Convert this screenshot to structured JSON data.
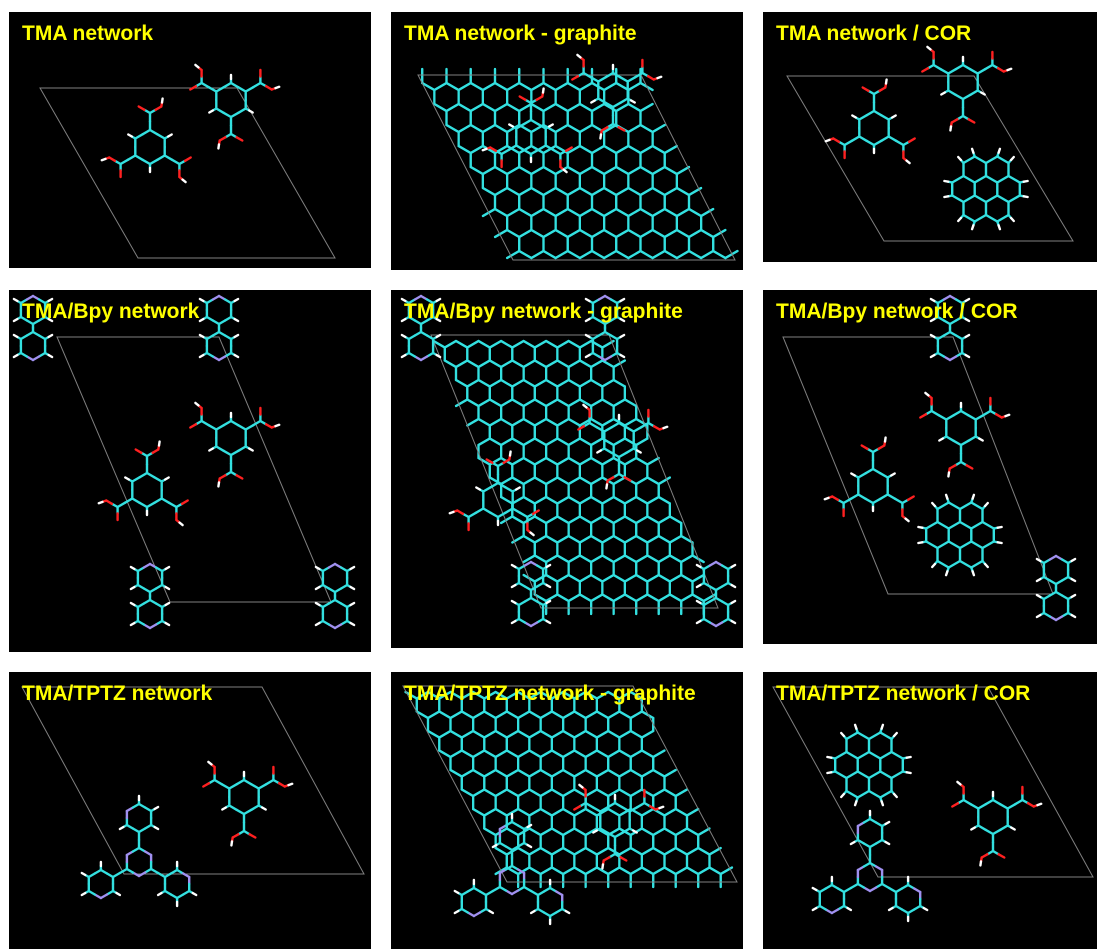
{
  "figure": {
    "panels": [
      {
        "label": "TMA network"
      },
      {
        "label": "TMA network - graphite"
      },
      {
        "label": "TMA network / COR"
      },
      {
        "label": "TMA/Bpy network"
      },
      {
        "label": "TMA/Bpy network - graphite"
      },
      {
        "label": "TMA/Bpy network / COR"
      },
      {
        "label": "TMA/TPTZ network"
      },
      {
        "label": "TMA/TPTZ network - graphite"
      },
      {
        "label": "TMA/TPTZ network / COR"
      }
    ]
  },
  "colors": {
    "panel_background": "#000000",
    "label_text": "#ffff00",
    "carbon": "#33e0e0",
    "oxygen": "#ff2020",
    "hydrogen": "#ffffff",
    "nitrogen": "#a090f0",
    "unit_cell": "#808080"
  }
}
